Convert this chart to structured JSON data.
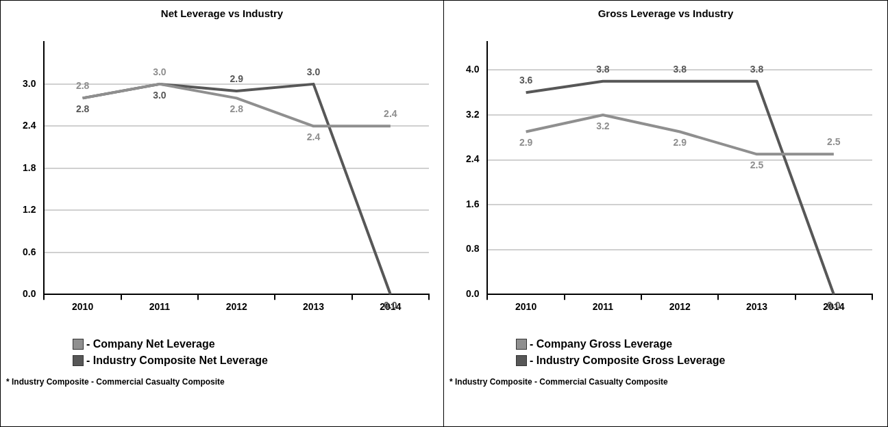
{
  "chart_data": [
    {
      "type": "line",
      "title": "Net Leverage vs Industry",
      "categories": [
        "2010",
        "2011",
        "2012",
        "2013",
        "2014"
      ],
      "series": [
        {
          "name": "- Company Net Leverage",
          "color": "#8f8f8f",
          "values": [
            2.8,
            3.0,
            2.8,
            2.4,
            2.4
          ],
          "value_labels": [
            "2.8",
            "3.0",
            "2.8",
            "2.4",
            "2.4"
          ]
        },
        {
          "name": "- Industry Composite Net Leverage",
          "color": "#575757",
          "values": [
            2.8,
            3.0,
            2.9,
            3.0,
            0.0
          ],
          "value_labels": [
            "2.8",
            "3.0",
            "2.9",
            "3.0",
            "0.0"
          ]
        }
      ],
      "ylim": [
        0,
        3.6
      ],
      "yticks": [
        {
          "value": 0,
          "label": "0.0"
        },
        {
          "value": 0.6,
          "label": "0.6"
        },
        {
          "value": 1.2,
          "label": "1.2"
        },
        {
          "value": 1.8,
          "label": "1.8"
        },
        {
          "value": 2.4,
          "label": "2.4"
        },
        {
          "value": 3.0,
          "label": "3.0"
        }
      ],
      "grid": "y",
      "legend": "bottom left",
      "marker": "none",
      "line_style": "solid",
      "annotations": [
        "* Industry Composite - Commercial Casualty Composite"
      ]
    },
    {
      "type": "line",
      "title": "Gross Leverage vs Industry",
      "categories": [
        "2010",
        "2011",
        "2012",
        "2013",
        "2014"
      ],
      "series": [
        {
          "name": "- Company Gross Leverage",
          "color": "#8f8f8f",
          "values": [
            2.9,
            3.2,
            2.9,
            2.5,
            2.5
          ],
          "value_labels": [
            "2.9",
            "3.2",
            "2.9",
            "2.5",
            "2.5"
          ]
        },
        {
          "name": "- Industry Composite Gross Leverage",
          "color": "#575757",
          "values": [
            3.6,
            3.8,
            3.8,
            3.8,
            0.0
          ],
          "value_labels": [
            "3.6",
            "3.8",
            "3.8",
            "3.8",
            "0.0"
          ]
        }
      ],
      "ylim": [
        0,
        4.5
      ],
      "yticks": [
        {
          "value": 0,
          "label": "0.0"
        },
        {
          "value": 0.8,
          "label": "0.8"
        },
        {
          "value": 1.6,
          "label": "1.6"
        },
        {
          "value": 2.4,
          "label": "2.4"
        },
        {
          "value": 3.2,
          "label": "3.2"
        },
        {
          "value": 4.0,
          "label": "4.0"
        }
      ],
      "grid": "y",
      "legend": "bottom left",
      "marker": "none",
      "line_style": "solid",
      "annotations": [
        "* Industry Composite - Commercial Casualty Composite"
      ]
    }
  ]
}
